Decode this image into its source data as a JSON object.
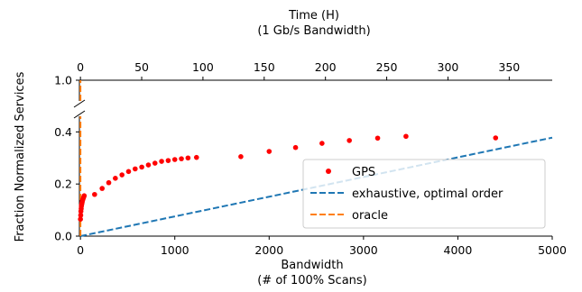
{
  "chart_data": {
    "type": "scatter",
    "title": "",
    "top_axis": {
      "label_line1": "Time (H)",
      "label_line2": "(1 Gb/s Bandwidth)",
      "ticks": [
        0,
        50,
        100,
        150,
        200,
        250,
        300,
        350
      ],
      "tick_labels": [
        "0",
        "50",
        "100",
        "150",
        "200",
        "250",
        "300",
        "350"
      ],
      "range": [
        -0.84,
        385.1
      ]
    },
    "x_axis": {
      "label_line1": "Bandwidth",
      "label_line2": "(# of 100% Scans)",
      "ticks": [
        0,
        1000,
        2000,
        3000,
        4000,
        5000
      ],
      "tick_labels": [
        "0",
        "1000",
        "2000",
        "3000",
        "4000",
        "5000"
      ],
      "range": [
        -11,
        5000
      ]
    },
    "y_axis": {
      "label": "Fraction Normalized Services",
      "lower_ticks": [
        0.0,
        0.2,
        0.4
      ],
      "lower_tick_labels": [
        "0.0",
        "0.2",
        "0.4"
      ],
      "lower_range": [
        0.0,
        0.46
      ],
      "upper_ticks": [
        1.0
      ],
      "upper_tick_labels": [
        "1.0"
      ],
      "broken_axis": true
    },
    "legend": {
      "position": "lower-right",
      "entries": [
        {
          "label": "GPS",
          "color": "#ff0000",
          "style": "marker"
        },
        {
          "label": "exhaustive, optimal order",
          "color": "#1f77b4",
          "style": "dashed"
        },
        {
          "label": "oracle",
          "color": "#ff7f0e",
          "style": "dashed"
        }
      ]
    },
    "series": [
      {
        "name": "GPS",
        "color": "#ff0000",
        "x": [
          0,
          3,
          5,
          8,
          10,
          12,
          15,
          18,
          20,
          25,
          30,
          35,
          40,
          150,
          230,
          300,
          370,
          440,
          510,
          580,
          650,
          720,
          790,
          860,
          930,
          1000,
          1070,
          1140,
          1230,
          1700,
          2000,
          2280,
          2560,
          2850,
          3150,
          3450,
          4400
        ],
        "y": [
          0.065,
          0.08,
          0.095,
          0.105,
          0.115,
          0.12,
          0.125,
          0.13,
          0.135,
          0.14,
          0.145,
          0.15,
          0.155,
          0.16,
          0.183,
          0.205,
          0.222,
          0.235,
          0.248,
          0.258,
          0.265,
          0.273,
          0.28,
          0.287,
          0.29,
          0.294,
          0.297,
          0.3,
          0.302,
          0.305,
          0.325,
          0.34,
          0.356,
          0.367,
          0.376,
          0.383,
          0.377
        ]
      },
      {
        "name": "exhaustive, optimal order",
        "color": "#1f77b4",
        "x": [
          0,
          5000
        ],
        "y": [
          0.0,
          0.378
        ]
      },
      {
        "name": "oracle",
        "color": "#ff7f0e",
        "x": [
          0,
          0
        ],
        "y": [
          0.0,
          1.0
        ]
      }
    ]
  }
}
